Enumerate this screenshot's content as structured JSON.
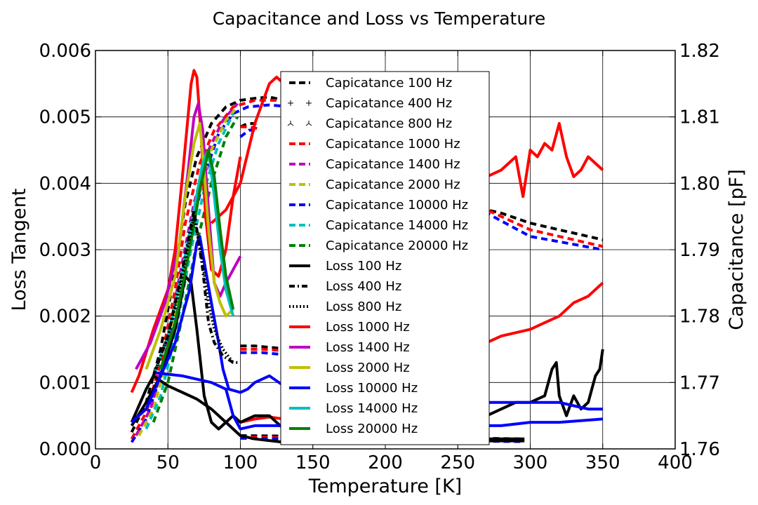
{
  "chart_data": {
    "type": "line",
    "title": "Capacitance and Loss vs Temperature",
    "xlabel": "Temperature [K]",
    "ylabel": "Loss Tangent",
    "ylabel_right": "Capacitance [pF]",
    "xlim": [
      0,
      400
    ],
    "ylim": [
      0,
      0.006
    ],
    "ylim_right": [
      1.76,
      1.82
    ],
    "x_ticks": [
      "0",
      "50",
      "100",
      "150",
      "200",
      "250",
      "300",
      "350",
      "400"
    ],
    "y_ticks": [
      "0.000",
      "0.001",
      "0.002",
      "0.003",
      "0.004",
      "0.005",
      "0.006"
    ],
    "y_right_ticks": [
      "1.76",
      "1.77",
      "1.78",
      "1.79",
      "1.80",
      "1.81",
      "1.82"
    ],
    "grid": true,
    "legend_position": "center",
    "legend": [
      {
        "label": "Capicatance 100 Hz",
        "color": "#000000",
        "style": "dashed"
      },
      {
        "label": "Capicatance 400 Hz",
        "color": "#000000",
        "style": "plus"
      },
      {
        "label": "Capicatance 800 Hz",
        "color": "#000000",
        "style": "tri"
      },
      {
        "label": "Capicatance 1000 Hz",
        "color": "#ff0000",
        "style": "dashed"
      },
      {
        "label": "Capicatance 1400 Hz",
        "color": "#bf00bf",
        "style": "dashed"
      },
      {
        "label": "Capicatance 2000 Hz",
        "color": "#bfbf00",
        "style": "dashed"
      },
      {
        "label": "Capicatance 10000 Hz",
        "color": "#0000ff",
        "style": "dashed"
      },
      {
        "label": "Capicatance 14000 Hz",
        "color": "#00bfbf",
        "style": "dashed"
      },
      {
        "label": "Capicatance 20000 Hz",
        "color": "#008000",
        "style": "dashed"
      },
      {
        "label": "Loss 100 Hz",
        "color": "#000000",
        "style": "solid"
      },
      {
        "label": "Loss 400 Hz",
        "color": "#000000",
        "style": "dashdot"
      },
      {
        "label": "Loss 800 Hz",
        "color": "#000000",
        "style": "dotted"
      },
      {
        "label": "Loss 1000 Hz",
        "color": "#ff0000",
        "style": "solid"
      },
      {
        "label": "Loss 1400 Hz",
        "color": "#bf00bf",
        "style": "solid"
      },
      {
        "label": "Loss 2000 Hz",
        "color": "#bfbf00",
        "style": "solid"
      },
      {
        "label": "Loss 10000 Hz",
        "color": "#0000ff",
        "style": "solid"
      },
      {
        "label": "Loss 14000 Hz",
        "color": "#00bfbf",
        "style": "solid"
      },
      {
        "label": "Loss 20000 Hz",
        "color": "#008000",
        "style": "solid"
      }
    ],
    "series": [
      {
        "axis": "right",
        "color": "#000000",
        "style": "dashed",
        "x": [
          25,
          35,
          45,
          55,
          62,
          70,
          80,
          90,
          100,
          110,
          120,
          140,
          170,
          200,
          240,
          260,
          280,
          300,
          320,
          350
        ],
        "y": [
          1.7625,
          1.767,
          1.775,
          1.787,
          1.797,
          1.804,
          1.809,
          1.8115,
          1.8125,
          1.8128,
          1.813,
          1.812,
          1.811,
          1.807,
          1.8,
          1.7965,
          1.7955,
          1.794,
          1.793,
          1.7915
        ]
      },
      {
        "axis": "right",
        "color": "#ff0000",
        "style": "dashed",
        "x": [
          25,
          35,
          45,
          55,
          62,
          72,
          82,
          95,
          110,
          130,
          160,
          200,
          240,
          270,
          300,
          320,
          350
        ],
        "y": [
          1.7615,
          1.7655,
          1.773,
          1.784,
          1.794,
          1.803,
          1.808,
          1.8115,
          1.8125,
          1.8125,
          1.812,
          1.808,
          1.8,
          1.796,
          1.793,
          1.792,
          1.7905
        ]
      },
      {
        "axis": "right",
        "color": "#0000ff",
        "style": "dashed",
        "x": [
          25,
          35,
          45,
          55,
          65,
          75,
          85,
          95,
          105,
          120,
          150,
          200,
          240,
          270,
          300,
          320,
          350
        ],
        "y": [
          1.761,
          1.7645,
          1.771,
          1.781,
          1.792,
          1.801,
          1.8075,
          1.8105,
          1.8115,
          1.8118,
          1.8112,
          1.8075,
          1.8,
          1.7955,
          1.792,
          1.7912,
          1.79
        ]
      },
      {
        "axis": "right",
        "color": "#bf00bf",
        "style": "dashed",
        "x": [
          28,
          38,
          48,
          58,
          68,
          78,
          88,
          98
        ],
        "y": [
          1.762,
          1.766,
          1.774,
          1.786,
          1.797,
          1.805,
          1.8095,
          1.812
        ]
      },
      {
        "axis": "right",
        "color": "#bfbf00",
        "style": "dashed",
        "x": [
          30,
          40,
          50,
          60,
          70,
          80,
          90,
          98
        ],
        "y": [
          1.762,
          1.766,
          1.774,
          1.786,
          1.797,
          1.805,
          1.8095,
          1.8115
        ]
      },
      {
        "axis": "right",
        "color": "#00bfbf",
        "style": "dashed",
        "x": [
          35,
          45,
          55,
          65,
          75,
          85,
          95
        ],
        "y": [
          1.763,
          1.768,
          1.777,
          1.789,
          1.799,
          1.806,
          1.8105
        ]
      },
      {
        "axis": "right",
        "color": "#008000",
        "style": "dashed",
        "x": [
          40,
          50,
          60,
          70,
          80,
          90,
          98
        ],
        "y": [
          1.764,
          1.77,
          1.78,
          1.791,
          1.8,
          1.807,
          1.81
        ]
      },
      {
        "axis": "right",
        "color": "#000000",
        "style": "dashed",
        "x": [
          100,
          110,
          125,
          140,
          160,
          190,
          220
        ],
        "y": [
          1.7755,
          1.7755,
          1.7752,
          1.775,
          1.7745,
          1.774,
          1.7738
        ]
      },
      {
        "axis": "right",
        "color": "#ff0000",
        "style": "dashed",
        "x": [
          100,
          115,
          130,
          150,
          170,
          200,
          220
        ],
        "y": [
          1.775,
          1.775,
          1.7748,
          1.7745,
          1.774,
          1.7735,
          1.7733
        ]
      },
      {
        "axis": "right",
        "color": "#0000ff",
        "style": "dashed",
        "x": [
          100,
          115,
          130,
          150,
          170,
          200,
          220
        ],
        "y": [
          1.7745,
          1.7745,
          1.7742,
          1.774,
          1.7735,
          1.773,
          1.7728
        ]
      },
      {
        "axis": "right",
        "color": "#000000",
        "style": "dashed",
        "x": [
          100,
          105,
          112
        ],
        "y": [
          1.8085,
          1.809,
          1.809
        ]
      },
      {
        "axis": "right",
        "color": "#ff0000",
        "style": "dashed",
        "x": [
          100,
          106,
          113
        ],
        "y": [
          1.8085,
          1.8085,
          1.8082
        ]
      },
      {
        "axis": "right",
        "color": "#0000ff",
        "style": "dashed",
        "x": [
          100,
          106,
          113
        ],
        "y": [
          1.807,
          1.808,
          1.808
        ]
      },
      {
        "axis": "right",
        "color": "#000000",
        "style": "dashed",
        "x": [
          100,
          200,
          296
        ],
        "y": [
          1.762,
          1.7618,
          1.7615
        ]
      },
      {
        "axis": "right",
        "color": "#ff0000",
        "style": "dashed",
        "x": [
          100,
          200,
          296
        ],
        "y": [
          1.7618,
          1.7615,
          1.7613
        ]
      },
      {
        "axis": "right",
        "color": "#0000ff",
        "style": "dashed",
        "x": [
          100,
          200,
          296
        ],
        "y": [
          1.7616,
          1.7613,
          1.7611
        ]
      },
      {
        "axis": "left",
        "color": "#ff0000",
        "style": "solid",
        "x": [
          25,
          30,
          35,
          40,
          45,
          50,
          55,
          60,
          63,
          66,
          68,
          70,
          73,
          76,
          80,
          85,
          90,
          95,
          100
        ],
        "y": [
          0.00085,
          0.0011,
          0.00145,
          0.0018,
          0.0021,
          0.0024,
          0.003,
          0.0041,
          0.0048,
          0.0055,
          0.0057,
          0.0056,
          0.0047,
          0.0035,
          0.0027,
          0.0026,
          0.003,
          0.0038,
          0.0044
        ]
      },
      {
        "axis": "left",
        "color": "#ff0000",
        "style": "solid",
        "x": [
          80,
          90,
          100,
          110,
          120,
          125,
          130,
          140,
          150,
          170,
          200,
          220,
          240,
          260,
          270,
          280,
          290,
          295,
          300,
          305,
          310,
          315,
          320,
          325,
          330,
          335,
          340,
          345,
          350
        ],
        "y": [
          0.0034,
          0.0036,
          0.004,
          0.0049,
          0.0055,
          0.0056,
          0.0055,
          0.0052,
          0.005,
          0.0047,
          0.0045,
          0.0044,
          0.0043,
          0.0041,
          0.0041,
          0.0042,
          0.0044,
          0.0038,
          0.0045,
          0.0044,
          0.0046,
          0.0045,
          0.0049,
          0.0044,
          0.0041,
          0.0042,
          0.0044,
          0.0043,
          0.0042
        ]
      },
      {
        "axis": "left",
        "color": "#ff0000",
        "style": "solid",
        "x": [
          250,
          260,
          270,
          280,
          290,
          300,
          310,
          320,
          330,
          340,
          345,
          350
        ],
        "y": [
          0.00145,
          0.0015,
          0.0016,
          0.0017,
          0.00175,
          0.0018,
          0.0019,
          0.002,
          0.0022,
          0.0023,
          0.0024,
          0.0025
        ]
      },
      {
        "axis": "left",
        "color": "#ff0000",
        "style": "solid",
        "x": [
          100,
          110,
          120,
          130
        ],
        "y": [
          0.0004,
          0.00045,
          0.00048,
          0.00045
        ]
      },
      {
        "axis": "left",
        "color": "#000000",
        "style": "solid",
        "x": [
          25,
          35,
          45,
          55,
          62,
          66,
          70,
          75,
          80,
          85,
          90,
          95,
          100,
          110,
          120,
          130,
          140,
          160,
          180,
          200,
          230,
          260,
          280,
          296
        ],
        "y": [
          0.00035,
          0.0007,
          0.0011,
          0.0018,
          0.0026,
          0.0025,
          0.0018,
          0.0008,
          0.0004,
          0.0003,
          0.0004,
          0.0005,
          0.0004,
          0.0005,
          0.0005,
          0.0003,
          0.0002,
          0.0002,
          0.00018,
          0.00015,
          0.00015,
          0.00015,
          0.00015,
          0.00015
        ]
      },
      {
        "axis": "left",
        "color": "#000000",
        "style": "solid",
        "x": [
          25,
          35,
          40,
          50,
          60,
          70,
          80,
          90,
          100,
          110,
          130,
          150,
          170,
          200,
          230,
          260,
          280,
          296
        ],
        "y": [
          0.0004,
          0.0009,
          0.0011,
          0.00095,
          0.00085,
          0.00075,
          0.0006,
          0.0004,
          0.0002,
          0.00015,
          0.0001,
          0.0001,
          0.0001,
          0.0001,
          0.00012,
          0.00012,
          0.00012,
          0.00012
        ]
      },
      {
        "axis": "left",
        "color": "#000000",
        "style": "solid",
        "x": [
          270,
          280,
          290,
          300,
          310,
          315,
          318,
          320,
          325,
          330,
          335,
          340,
          345,
          348,
          350
        ],
        "y": [
          0.0005,
          0.0006,
          0.0007,
          0.0007,
          0.0008,
          0.0012,
          0.0013,
          0.0008,
          0.0005,
          0.0008,
          0.0006,
          0.0007,
          0.0011,
          0.0012,
          0.0015
        ]
      },
      {
        "axis": "left",
        "color": "#0000ff",
        "style": "solid",
        "x": [
          25,
          35,
          45,
          55,
          65,
          70,
          72,
          76,
          80,
          85,
          88,
          92,
          100,
          105,
          110,
          120,
          130,
          140,
          150,
          170,
          200,
          240,
          270,
          300,
          320,
          330,
          340,
          350
        ],
        "y": [
          0.0004,
          0.0006,
          0.0011,
          0.0016,
          0.0024,
          0.0031,
          0.0032,
          0.0027,
          0.0022,
          0.0016,
          0.0012,
          0.0009,
          0.00085,
          0.0009,
          0.001,
          0.0011,
          0.00095,
          0.0009,
          0.00085,
          0.0008,
          0.00075,
          0.0007,
          0.0007,
          0.0007,
          0.0007,
          0.00065,
          0.0006,
          0.0006
        ]
      },
      {
        "axis": "left",
        "color": "#0000ff",
        "style": "solid",
        "x": [
          40,
          60,
          80,
          90,
          95,
          100,
          110,
          130,
          150,
          200,
          250,
          280,
          300,
          320,
          350
        ],
        "y": [
          0.00115,
          0.0011,
          0.001,
          0.0009,
          0.0005,
          0.0003,
          0.00035,
          0.00035,
          0.00035,
          0.00035,
          0.00035,
          0.00035,
          0.0004,
          0.0004,
          0.00045
        ]
      },
      {
        "axis": "left",
        "color": "#bf00bf",
        "style": "solid",
        "x": [
          28,
          38,
          48,
          58,
          64,
          68,
          71,
          74,
          78,
          82,
          86,
          90,
          95,
          100
        ],
        "y": [
          0.0012,
          0.0016,
          0.0022,
          0.0031,
          0.0042,
          0.005,
          0.0052,
          0.0048,
          0.0036,
          0.0025,
          0.0023,
          0.0025,
          0.0027,
          0.0029
        ]
      },
      {
        "axis": "left",
        "color": "#bfbf00",
        "style": "solid",
        "x": [
          35,
          45,
          55,
          62,
          68,
          72,
          75,
          78,
          82,
          86,
          90,
          95
        ],
        "y": [
          0.0012,
          0.0018,
          0.0026,
          0.0038,
          0.0046,
          0.0049,
          0.0042,
          0.0033,
          0.0025,
          0.0022,
          0.002,
          0.0021
        ]
      },
      {
        "axis": "left",
        "color": "#00bfbf",
        "style": "solid",
        "x": [
          40,
          50,
          60,
          68,
          74,
          78,
          82,
          86,
          90,
          95
        ],
        "y": [
          0.0011,
          0.0017,
          0.0027,
          0.0036,
          0.0043,
          0.0045,
          0.0038,
          0.003,
          0.0024,
          0.002
        ]
      },
      {
        "axis": "left",
        "color": "#008000",
        "style": "solid",
        "x": [
          45,
          55,
          65,
          72,
          78,
          82,
          86,
          90,
          95
        ],
        "y": [
          0.0012,
          0.0019,
          0.003,
          0.0039,
          0.0045,
          0.0041,
          0.0033,
          0.0026,
          0.0021
        ]
      },
      {
        "axis": "left",
        "color": "#000000",
        "style": "dashdot",
        "x": [
          40,
          50,
          60,
          68,
          74,
          78,
          82,
          88,
          95,
          100
        ],
        "y": [
          0.0011,
          0.0017,
          0.0027,
          0.0036,
          0.0027,
          0.0019,
          0.0016,
          0.0014,
          0.0013,
          0.0013
        ]
      },
      {
        "axis": "left",
        "color": "#000000",
        "style": "dotted",
        "x": [
          40,
          50,
          60,
          68,
          74,
          78,
          82,
          88,
          95
        ],
        "y": [
          0.0011,
          0.0017,
          0.0026,
          0.0035,
          0.0028,
          0.0022,
          0.0018,
          0.0015,
          0.0013
        ]
      }
    ]
  }
}
